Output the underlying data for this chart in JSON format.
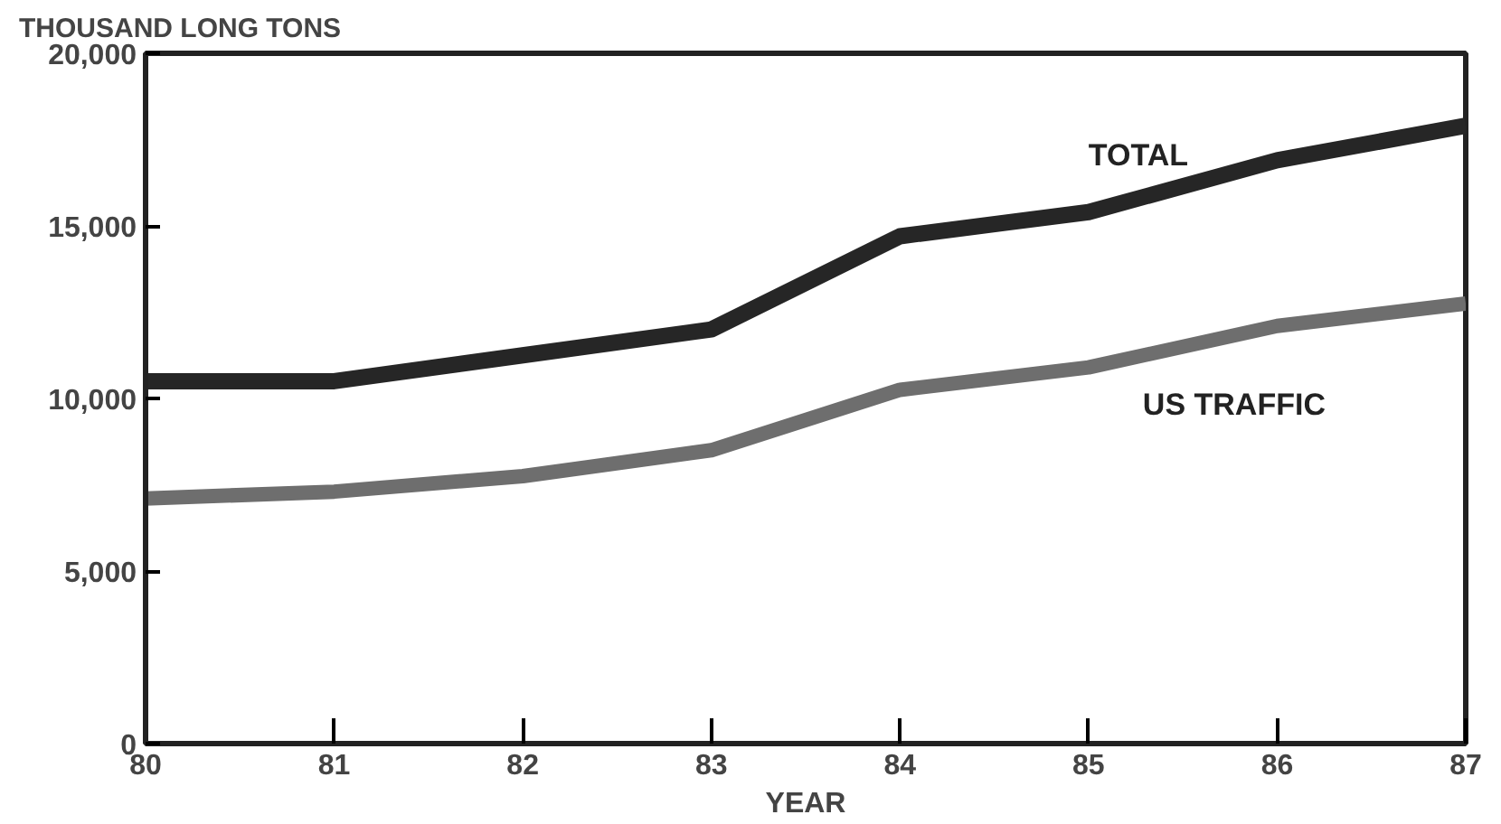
{
  "chart_data": {
    "type": "line",
    "ylabel": "THOUSAND LONG TONS",
    "xlabel": "YEAR",
    "x": [
      80,
      81,
      82,
      83,
      84,
      85,
      86,
      87
    ],
    "series": [
      {
        "name": "TOTAL",
        "color": "#262626",
        "values": [
          10500,
          10500,
          11250,
          12000,
          14700,
          15400,
          16900,
          17900
        ]
      },
      {
        "name": "US TRAFFIC",
        "color": "#6e6e6e",
        "values": [
          7100,
          7300,
          7750,
          8500,
          10250,
          10900,
          12100,
          12750
        ]
      }
    ],
    "xlim": [
      80,
      87
    ],
    "ylim": [
      0,
      20000
    ],
    "xticks": [
      80,
      81,
      82,
      83,
      84,
      85,
      86,
      87
    ],
    "yticks": [
      {
        "value": 0,
        "label": "0"
      },
      {
        "value": 5000,
        "label": "5,000"
      },
      {
        "value": 10000,
        "label": "10,000"
      },
      {
        "value": 15000,
        "label": "15,000"
      },
      {
        "value": 20000,
        "label": "20,000"
      }
    ],
    "grid": false,
    "marker": "none",
    "line_style": "solid"
  }
}
